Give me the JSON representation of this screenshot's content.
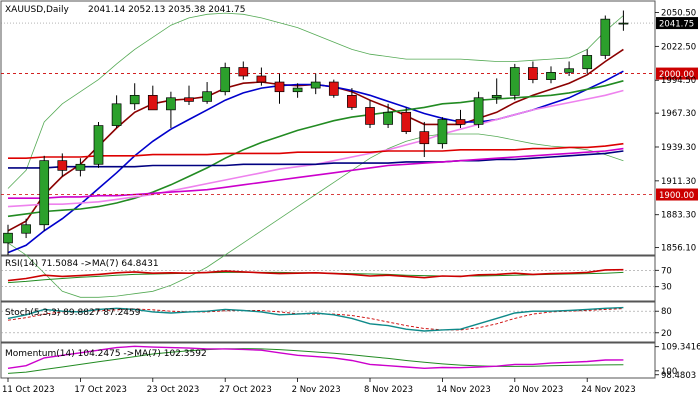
{
  "chart_data": {
    "type": "candlestick",
    "symbol_header": "XAUUSD,Daily",
    "ohlc_header": "2041.14 2052.13 2035.38 2041.75",
    "price_axis": {
      "ylim": [
        1850,
        2060
      ],
      "ticks": [
        "2050.50",
        "2022.50",
        "1994.50",
        "1967.30",
        "1939.30",
        "1911.30",
        "1883.30",
        "1856.10"
      ],
      "tick_values": [
        2050.5,
        2022.5,
        1994.5,
        1967.3,
        1939.3,
        1911.3,
        1883.3,
        1856.1
      ]
    },
    "last_price": {
      "label": "2041.75",
      "value": 2041.75
    },
    "levels": [
      {
        "label": "2000.00",
        "value": 2000.0,
        "color": "#cc0000"
      },
      {
        "label": "1900.00",
        "value": 1900.0,
        "color": "#cc0000"
      }
    ],
    "date_labels": [
      {
        "label": "11 Oct 2023",
        "index": 0
      },
      {
        "label": "17 Oct 2023",
        "index": 4
      },
      {
        "label": "23 Oct 2023",
        "index": 8
      },
      {
        "label": "27 Oct 2023",
        "index": 12
      },
      {
        "label": "2 Nov 2023",
        "index": 16
      },
      {
        "label": "8 Nov 2023",
        "index": 20
      },
      {
        "label": "14 Nov 2023",
        "index": 24
      },
      {
        "label": "20 Nov 2023",
        "index": 28
      },
      {
        "label": "24 Nov 2023",
        "index": 32
      }
    ],
    "candles": [
      [
        1860,
        1875,
        1850,
        1868
      ],
      [
        1868,
        1880,
        1864,
        1875
      ],
      [
        1875,
        1932,
        1870,
        1928
      ],
      [
        1928,
        1934,
        1915,
        1920
      ],
      [
        1920,
        1930,
        1915,
        1925
      ],
      [
        1925,
        1960,
        1922,
        1957
      ],
      [
        1957,
        1982,
        1955,
        1975
      ],
      [
        1975,
        1992,
        1970,
        1982
      ],
      [
        1982,
        1990,
        1970,
        1970
      ],
      [
        1970,
        1985,
        1955,
        1980
      ],
      [
        1980,
        1990,
        1974,
        1977
      ],
      [
        1977,
        1993,
        1975,
        1985
      ],
      [
        1985,
        2009,
        1982,
        2005
      ],
      [
        2005,
        2010,
        1995,
        1998
      ],
      [
        1998,
        2005,
        1990,
        1993
      ],
      [
        1993,
        2000,
        1975,
        1985
      ],
      [
        1985,
        1992,
        1980,
        1988
      ],
      [
        1988,
        2000,
        1983,
        1993
      ],
      [
        1993,
        1995,
        1980,
        1982
      ],
      [
        1982,
        1988,
        1970,
        1972
      ],
      [
        1972,
        1978,
        1955,
        1958
      ],
      [
        1958,
        1975,
        1955,
        1968
      ],
      [
        1968,
        1972,
        1950,
        1952
      ],
      [
        1952,
        1960,
        1931,
        1942
      ],
      [
        1942,
        1964,
        1938,
        1962
      ],
      [
        1962,
        1970,
        1955,
        1958
      ],
      [
        1958,
        1985,
        1955,
        1980
      ],
      [
        1980,
        1996,
        1975,
        1982
      ],
      [
        1982,
        2008,
        1978,
        2005
      ],
      [
        2005,
        2010,
        1992,
        1995
      ],
      [
        1995,
        2006,
        1992,
        2001
      ],
      [
        2001,
        2010,
        1998,
        2004
      ],
      [
        2004,
        2020,
        2000,
        2015
      ],
      [
        2015,
        2048,
        2012,
        2045
      ],
      [
        2041.14,
        2052.13,
        2035.38,
        2041.75
      ]
    ],
    "ma_lines": [
      {
        "color": "#8b0000",
        "values": [
          1870,
          1878,
          1900,
          1915,
          1925,
          1940,
          1955,
          1968,
          1975,
          1978,
          1979,
          1981,
          1988,
          1992,
          1993,
          1991,
          1990,
          1991,
          1989,
          1985,
          1978,
          1972,
          1965,
          1958,
          1958,
          1958,
          1963,
          1968,
          1976,
          1982,
          1987,
          1992,
          1999,
          2010,
          2020
        ]
      },
      {
        "color": "#0000cc",
        "values": [
          1852,
          1858,
          1870,
          1880,
          1892,
          1905,
          1918,
          1932,
          1944,
          1954,
          1962,
          1970,
          1978,
          1984,
          1988,
          1990,
          1991,
          1991,
          1989,
          1986,
          1982,
          1977,
          1972,
          1967,
          1963,
          1960,
          1960,
          1962,
          1966,
          1970,
          1975,
          1980,
          1987,
          1994,
          2002
        ]
      },
      {
        "color": "#228b22",
        "values": [
          1882,
          1884,
          1886,
          1887,
          1888,
          1890,
          1893,
          1897,
          1902,
          1908,
          1915,
          1922,
          1930,
          1937,
          1943,
          1948,
          1953,
          1957,
          1961,
          1964,
          1966,
          1968,
          1970,
          1972,
          1975,
          1976,
          1978,
          1979,
          1980,
          1981,
          1982,
          1984,
          1987,
          1990,
          1994
        ]
      },
      {
        "color": "#ee82ee",
        "values": [
          1890,
          1891,
          1892,
          1892,
          1893,
          1894,
          1896,
          1898,
          1900,
          1903,
          1906,
          1909,
          1912,
          1915,
          1918,
          1921,
          1923,
          1925,
          1928,
          1931,
          1934,
          1937,
          1941,
          1945,
          1950,
          1954,
          1958,
          1962,
          1966,
          1970,
          1973,
          1976,
          1979,
          1982,
          1986
        ]
      },
      {
        "color": "#dd0000",
        "values": [
          1930,
          1930,
          1931,
          1931,
          1931,
          1932,
          1932,
          1932,
          1933,
          1933,
          1933,
          1933,
          1934,
          1934,
          1934,
          1934,
          1935,
          1935,
          1935,
          1935,
          1935,
          1936,
          1936,
          1936,
          1936,
          1937,
          1937,
          1937,
          1937,
          1938,
          1938,
          1939,
          1939,
          1940,
          1942
        ]
      },
      {
        "color": "#000080",
        "values": [
          1922,
          1922,
          1922,
          1923,
          1923,
          1923,
          1923,
          1923,
          1924,
          1924,
          1924,
          1924,
          1924,
          1925,
          1925,
          1925,
          1925,
          1925,
          1926,
          1926,
          1926,
          1926,
          1927,
          1927,
          1927,
          1928,
          1928,
          1929,
          1929,
          1930,
          1931,
          1932,
          1933,
          1934,
          1936
        ]
      },
      {
        "color": "#cc00cc",
        "values": [
          1897,
          1897,
          1897,
          1898,
          1898,
          1899,
          1899,
          1900,
          1901,
          1902,
          1903,
          1904,
          1906,
          1908,
          1910,
          1912,
          1914,
          1916,
          1918,
          1920,
          1922,
          1924,
          1925,
          1926,
          1927,
          1928,
          1929,
          1930,
          1931,
          1932,
          1933,
          1934,
          1935,
          1936,
          1938
        ]
      }
    ],
    "bollinger": {
      "color": "#55aa55",
      "upper": [
        1905,
        1920,
        1960,
        1975,
        1985,
        1995,
        2008,
        2020,
        2030,
        2040,
        2046,
        2049,
        2050,
        2049,
        2046,
        2042,
        2038,
        2032,
        2026,
        2020,
        2016,
        2014,
        2012,
        2012,
        2012,
        2012,
        2011,
        2010,
        2010,
        2011,
        2012,
        2013,
        2020,
        2035,
        2048
      ],
      "lower": [
        1860,
        1850,
        1835,
        1820,
        1815,
        1815,
        1816,
        1818,
        1820,
        1825,
        1832,
        1840,
        1850,
        1860,
        1870,
        1880,
        1890,
        1900,
        1910,
        1920,
        1930,
        1938,
        1944,
        1948,
        1950,
        1950,
        1950,
        1948,
        1945,
        1942,
        1940,
        1939,
        1937,
        1933,
        1928
      ]
    },
    "rsi": {
      "header": "RSI(14) 71.5084  ->MA(7) 64.8431",
      "ylim": [
        0,
        100
      ],
      "ticks": [
        "70",
        "30"
      ],
      "tick_values": [
        70,
        30
      ],
      "rsi_color": "#cc0000",
      "ma_color": "#228b22",
      "rsi": [
        45,
        50,
        58,
        55,
        57,
        60,
        64,
        66,
        63,
        64,
        63,
        65,
        68,
        66,
        64,
        62,
        63,
        64,
        62,
        60,
        56,
        58,
        55,
        52,
        56,
        55,
        59,
        60,
        63,
        60,
        62,
        63,
        65,
        71,
        71.5
      ],
      "ma": [
        40,
        43,
        47,
        50,
        53,
        55,
        58,
        60,
        61,
        62,
        63,
        64,
        65,
        65,
        65,
        65,
        64,
        64,
        63,
        62,
        61,
        60,
        58,
        57,
        56,
        56,
        56,
        57,
        58,
        59,
        60,
        61,
        62,
        63,
        64.8
      ]
    },
    "stoch": {
      "header": "Stoch(5,3,3) 89.8827 87.2459",
      "ylim": [
        0,
        100
      ],
      "ticks": [
        "80",
        "20"
      ],
      "tick_values": [
        80,
        20
      ],
      "main_color": "#0f8a8a",
      "signal_color": "#cc0000",
      "main": [
        60,
        70,
        85,
        80,
        78,
        85,
        88,
        85,
        78,
        75,
        78,
        80,
        85,
        82,
        78,
        70,
        72,
        75,
        70,
        60,
        45,
        40,
        30,
        25,
        28,
        30,
        45,
        60,
        75,
        80,
        80,
        82,
        85,
        88,
        89.9
      ],
      "signal": [
        55,
        62,
        72,
        78,
        80,
        81,
        84,
        86,
        84,
        80,
        78,
        78,
        81,
        82,
        82,
        78,
        73,
        72,
        72,
        68,
        60,
        50,
        40,
        32,
        28,
        28,
        34,
        45,
        60,
        72,
        78,
        80,
        82,
        85,
        87.2
      ]
    },
    "momentum": {
      "header": "Momentum(14) 104.2475  ->MA(7) 102.3592",
      "ylim": [
        98,
        110
      ],
      "ticks": [
        "109.3416",
        "100",
        "98.4803"
      ],
      "tick_values": [
        109.3416,
        100,
        98.4803
      ],
      "mom_color": "#cc00cc",
      "ma_color": "#228b22",
      "mom": [
        101,
        102,
        105,
        106,
        107,
        108,
        109,
        109.5,
        109.2,
        109,
        108.8,
        108.5,
        108.5,
        108.3,
        108,
        107,
        106,
        105.5,
        105,
        104,
        102.5,
        102,
        101.5,
        101,
        101.3,
        101.2,
        101.5,
        101.8,
        102.5,
        102.5,
        103,
        103.3,
        103.6,
        104.2,
        104.25
      ],
      "ma": [
        99,
        99.5,
        100.5,
        101.5,
        102.5,
        103.5,
        104.5,
        105.5,
        106.5,
        107.2,
        107.8,
        108.2,
        108.5,
        108.6,
        108.5,
        108.2,
        107.8,
        107.3,
        106.8,
        106.2,
        105.5,
        104.8,
        104,
        103.3,
        102.7,
        102.2,
        101.9,
        101.7,
        101.7,
        101.8,
        102,
        102.1,
        102.2,
        102.3,
        102.36
      ]
    }
  }
}
